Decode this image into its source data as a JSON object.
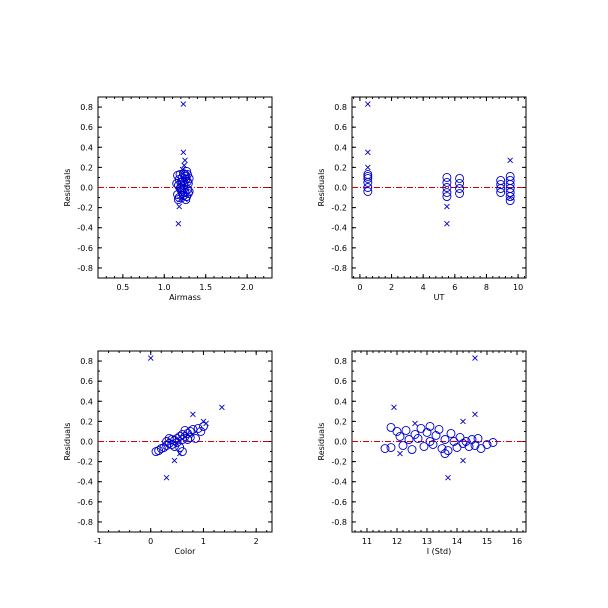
{
  "colors": {
    "marker": "#0000cc",
    "zero_line": "#cc0000",
    "axis": "#000000"
  },
  "chart_data": [
    {
      "type": "scatter",
      "xlabel": "Airmass",
      "ylabel": "Residuals",
      "xlim": [
        0.2,
        2.3
      ],
      "ylim": [
        -0.9,
        0.9
      ],
      "xticks": [
        0.5,
        1.0,
        1.5,
        2.0
      ],
      "xtick_labels": [
        "0.5",
        "1.0",
        "1.5",
        "2.0"
      ],
      "yticks": [
        -0.8,
        -0.6,
        -0.4,
        -0.2,
        0.0,
        0.2,
        0.4,
        0.6,
        0.8
      ],
      "ytick_labels": [
        "-0.8",
        "-0.6",
        "-0.4",
        "-0.2",
        "0.0",
        "0.2",
        "0.4",
        "0.6",
        "0.8"
      ],
      "reference_line_y": 0,
      "series": [
        {
          "marker": "circle",
          "points": [
            [
              1.16,
              0.12
            ],
            [
              1.18,
              0.08
            ],
            [
              1.2,
              0.05
            ],
            [
              1.17,
              0.02
            ],
            [
              1.19,
              -0.01
            ],
            [
              1.21,
              -0.04
            ],
            [
              1.16,
              -0.07
            ],
            [
              1.18,
              -0.1
            ],
            [
              1.2,
              0.0
            ],
            [
              1.15,
              0.04
            ],
            [
              1.22,
              0.1
            ],
            [
              1.22,
              0.06
            ],
            [
              1.19,
              0.13
            ],
            [
              1.17,
              -0.12
            ],
            [
              1.21,
              -0.02
            ],
            [
              1.24,
              0.02
            ],
            [
              1.26,
              0.08
            ],
            [
              1.28,
              0.13
            ],
            [
              1.25,
              -0.05
            ],
            [
              1.27,
              -0.09
            ],
            [
              1.24,
              0.05
            ],
            [
              1.28,
              -0.02
            ],
            [
              1.26,
              0.11
            ],
            [
              1.29,
              0.04
            ],
            [
              1.23,
              -0.08
            ],
            [
              1.27,
              0.16
            ],
            [
              1.3,
              0.09
            ],
            [
              1.25,
              0.13
            ],
            [
              1.29,
              -0.06
            ],
            [
              1.26,
              -0.12
            ],
            [
              1.24,
              -0.01
            ],
            [
              1.28,
              0.06
            ],
            [
              1.22,
              -0.06
            ],
            [
              1.3,
              -0.04
            ],
            [
              1.23,
              0.14
            ]
          ]
        },
        {
          "marker": "x",
          "points": [
            [
              1.23,
              0.83
            ],
            [
              1.23,
              0.35
            ],
            [
              1.25,
              0.27
            ],
            [
              1.24,
              0.22
            ],
            [
              1.22,
              0.18
            ],
            [
              1.18,
              -0.19
            ],
            [
              1.17,
              -0.36
            ],
            [
              1.25,
              -0.12
            ],
            [
              1.19,
              -0.12
            ]
          ]
        }
      ]
    },
    {
      "type": "scatter",
      "xlabel": "UT",
      "ylabel": "Residuals",
      "xlim": [
        -0.5,
        10.5
      ],
      "ylim": [
        -0.9,
        0.9
      ],
      "xticks": [
        0,
        2,
        4,
        6,
        8,
        10
      ],
      "xtick_labels": [
        "0",
        "2",
        "4",
        "6",
        "8",
        "10"
      ],
      "yticks": [
        -0.8,
        -0.6,
        -0.4,
        -0.2,
        0.0,
        0.2,
        0.4,
        0.6,
        0.8
      ],
      "ytick_labels": [
        "-0.8",
        "-0.6",
        "-0.4",
        "-0.2",
        "0.0",
        "0.2",
        "0.4",
        "0.6",
        "0.8"
      ],
      "reference_line_y": 0,
      "series": [
        {
          "marker": "circle",
          "points": [
            [
              0.5,
              0.13
            ],
            [
              0.5,
              0.09
            ],
            [
              0.5,
              0.05
            ],
            [
              0.5,
              0.0
            ],
            [
              0.5,
              -0.04
            ],
            [
              0.5,
              0.11
            ],
            [
              5.5,
              0.1
            ],
            [
              5.5,
              0.05
            ],
            [
              5.5,
              0.0
            ],
            [
              5.5,
              -0.05
            ],
            [
              5.5,
              -0.09
            ],
            [
              6.3,
              0.09
            ],
            [
              6.3,
              0.04
            ],
            [
              6.3,
              -0.01
            ],
            [
              6.3,
              -0.06
            ],
            [
              8.9,
              0.07
            ],
            [
              8.9,
              0.03
            ],
            [
              8.9,
              -0.01
            ],
            [
              8.9,
              -0.05
            ],
            [
              9.5,
              0.11
            ],
            [
              9.5,
              0.07
            ],
            [
              9.5,
              0.03
            ],
            [
              9.5,
              -0.01
            ],
            [
              9.5,
              -0.05
            ],
            [
              9.5,
              -0.09
            ],
            [
              9.5,
              -0.13
            ]
          ]
        },
        {
          "marker": "x",
          "points": [
            [
              0.5,
              0.83
            ],
            [
              0.5,
              0.35
            ],
            [
              0.5,
              0.2
            ],
            [
              5.5,
              -0.19
            ],
            [
              5.5,
              -0.36
            ],
            [
              9.5,
              0.27
            ],
            [
              9.5,
              -0.1
            ]
          ]
        }
      ]
    },
    {
      "type": "scatter",
      "xlabel": "Color",
      "ylabel": "Residuals",
      "xlim": [
        -1.0,
        2.3
      ],
      "ylim": [
        -0.9,
        0.9
      ],
      "xticks": [
        -1,
        0,
        1,
        2
      ],
      "xtick_labels": [
        "-1",
        "0",
        "1",
        "2"
      ],
      "yticks": [
        -0.8,
        -0.6,
        -0.4,
        -0.2,
        0.0,
        0.2,
        0.4,
        0.6,
        0.8
      ],
      "ytick_labels": [
        "-0.8",
        "-0.6",
        "-0.4",
        "-0.2",
        "0.0",
        "0.2",
        "0.4",
        "0.6",
        "0.8"
      ],
      "reference_line_y": 0,
      "series": [
        {
          "marker": "circle",
          "points": [
            [
              0.1,
              -0.1
            ],
            [
              0.15,
              -0.09
            ],
            [
              0.2,
              -0.07
            ],
            [
              0.25,
              -0.06
            ],
            [
              0.3,
              -0.04
            ],
            [
              0.3,
              0.0
            ],
            [
              0.35,
              -0.02
            ],
            [
              0.4,
              -0.03
            ],
            [
              0.4,
              0.02
            ],
            [
              0.45,
              -0.05
            ],
            [
              0.45,
              0.01
            ],
            [
              0.5,
              0.03
            ],
            [
              0.5,
              -0.01
            ],
            [
              0.55,
              0.05
            ],
            [
              0.55,
              -0.06
            ],
            [
              0.6,
              0.02
            ],
            [
              0.6,
              0.07
            ],
            [
              0.6,
              -0.1
            ],
            [
              0.65,
              0.05
            ],
            [
              0.65,
              0.11
            ],
            [
              0.7,
              0.08
            ],
            [
              0.7,
              0.02
            ],
            [
              0.75,
              0.1
            ],
            [
              0.75,
              0.04
            ],
            [
              0.8,
              0.12
            ],
            [
              0.85,
              0.03
            ],
            [
              0.9,
              0.13
            ],
            [
              0.95,
              0.1
            ],
            [
              1.0,
              0.15
            ],
            [
              0.35,
              0.03
            ]
          ]
        },
        {
          "marker": "x",
          "points": [
            [
              0.0,
              0.83
            ],
            [
              1.35,
              0.34
            ],
            [
              0.8,
              0.27
            ],
            [
              1.0,
              0.2
            ],
            [
              1.05,
              0.18
            ],
            [
              0.3,
              -0.36
            ],
            [
              0.45,
              -0.19
            ],
            [
              0.55,
              -0.12
            ]
          ]
        }
      ]
    },
    {
      "type": "scatter",
      "xlabel": "I (Std)",
      "ylabel": "Residuals",
      "xlim": [
        10.5,
        16.3
      ],
      "ylim": [
        -0.9,
        0.9
      ],
      "xticks": [
        11,
        12,
        13,
        14,
        15,
        16
      ],
      "xtick_labels": [
        "11",
        "12",
        "13",
        "14",
        "15",
        "16"
      ],
      "yticks": [
        -0.8,
        -0.6,
        -0.4,
        -0.2,
        0.0,
        0.2,
        0.4,
        0.6,
        0.8
      ],
      "ytick_labels": [
        "-0.8",
        "-0.6",
        "-0.4",
        "-0.2",
        "0.0",
        "0.2",
        "0.4",
        "0.6",
        "0.8"
      ],
      "reference_line_y": 0,
      "series": [
        {
          "marker": "circle",
          "points": [
            [
              11.6,
              -0.07
            ],
            [
              11.8,
              -0.06
            ],
            [
              11.8,
              0.14
            ],
            [
              12.0,
              0.1
            ],
            [
              12.1,
              0.05
            ],
            [
              12.2,
              -0.04
            ],
            [
              12.3,
              0.11
            ],
            [
              12.4,
              0.02
            ],
            [
              12.5,
              -0.08
            ],
            [
              12.6,
              0.07
            ],
            [
              12.7,
              0.03
            ],
            [
              12.8,
              0.13
            ],
            [
              12.9,
              -0.05
            ],
            [
              13.0,
              0.09
            ],
            [
              13.1,
              0.0
            ],
            [
              13.1,
              0.15
            ],
            [
              13.2,
              -0.03
            ],
            [
              13.3,
              0.06
            ],
            [
              13.4,
              0.12
            ],
            [
              13.5,
              -0.07
            ],
            [
              13.6,
              0.02
            ],
            [
              13.7,
              -0.09
            ],
            [
              13.8,
              0.08
            ],
            [
              13.9,
              0.0
            ],
            [
              14.0,
              -0.06
            ],
            [
              14.1,
              0.04
            ],
            [
              14.2,
              -0.02
            ],
            [
              14.3,
              0.0
            ],
            [
              14.4,
              -0.05
            ],
            [
              14.5,
              0.02
            ],
            [
              14.6,
              -0.04
            ],
            [
              14.7,
              0.03
            ],
            [
              14.8,
              -0.07
            ],
            [
              15.0,
              -0.03
            ],
            [
              15.2,
              -0.01
            ],
            [
              13.6,
              -0.12
            ]
          ]
        },
        {
          "marker": "x",
          "points": [
            [
              14.6,
              0.83
            ],
            [
              11.9,
              0.34
            ],
            [
              14.6,
              0.27
            ],
            [
              14.2,
              0.2
            ],
            [
              12.6,
              0.18
            ],
            [
              13.7,
              -0.36
            ],
            [
              14.2,
              -0.19
            ],
            [
              12.1,
              -0.12
            ]
          ]
        }
      ]
    }
  ]
}
